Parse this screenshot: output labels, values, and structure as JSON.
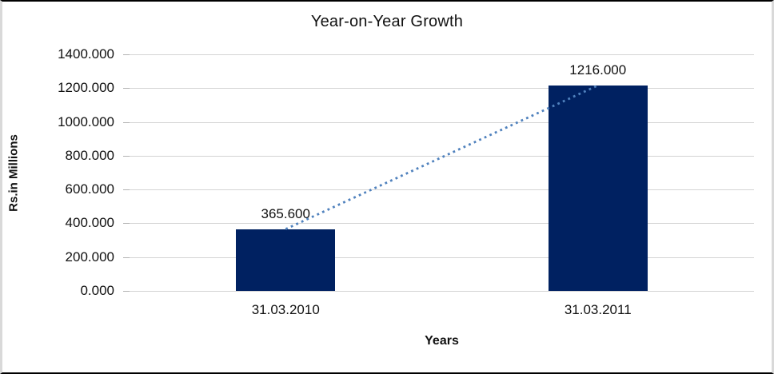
{
  "chart_data": {
    "type": "bar",
    "title": "Year-on-Year Growth",
    "categories": [
      "31.03.2010",
      "31.03.2011"
    ],
    "values": [
      365.6,
      1216.0
    ],
    "data_labels": [
      "365.600",
      "1216.000"
    ],
    "xlabel": "Years",
    "ylabel": "Rs.in Millions",
    "ylim": [
      0,
      1400
    ],
    "ytick_step": 200,
    "ytick_labels": [
      "0.000",
      "200.000",
      "400.000",
      "600.000",
      "800.000",
      "1000.000",
      "1200.000",
      "1400.000"
    ],
    "grid": true,
    "legend_position": "none",
    "bar_color": "#002161",
    "gridline_color": "#d4d4d4",
    "tick_color": "#b3b3b3",
    "trendline": {
      "type": "linear",
      "style": "dotted",
      "color": "#4f81bd",
      "from_value": 365.6,
      "to_value": 1216.0
    }
  }
}
